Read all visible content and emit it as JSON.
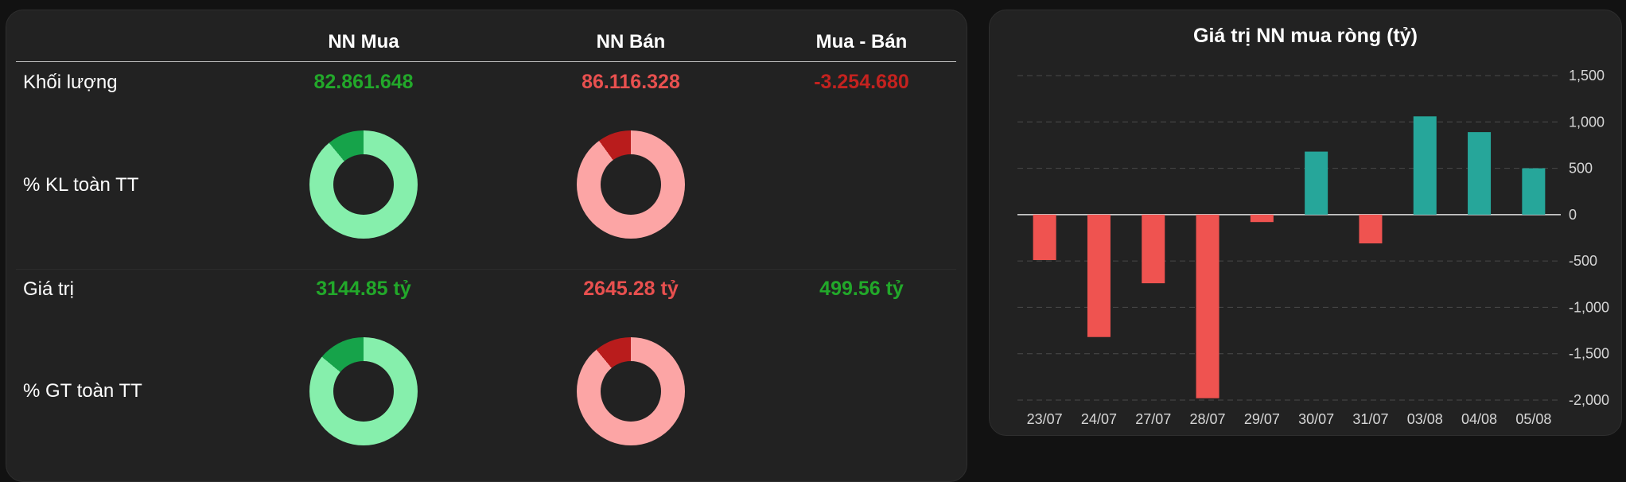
{
  "table": {
    "headers": {
      "buy": "NN Mua",
      "sell": "NN Bán",
      "net": "Mua - Bán"
    },
    "rows": {
      "volume": {
        "label": "Khối lượng",
        "buy": "82.861.648",
        "sell": "86.116.328",
        "net": "-3.254.680"
      },
      "volume_pct": {
        "label": "% KL toàn TT",
        "buy_share": 0.11,
        "sell_share": 0.1
      },
      "value": {
        "label": "Giá trị",
        "buy": "3144.85 tỷ",
        "sell": "2645.28 tỷ",
        "net": "499.56 tỷ"
      },
      "value_pct": {
        "label": "% GT toàn TT",
        "buy_share": 0.14,
        "sell_share": 0.11
      }
    }
  },
  "colors": {
    "positive_text": "#22a82a",
    "negative_text": "#e8504f",
    "net_negative_text": "#c4221f",
    "buy_donut_share": "#16a34a",
    "buy_donut_rest": "#86efac",
    "sell_donut_share": "#b91c1c",
    "sell_donut_rest": "#fca5a5",
    "bar_positive": "#26a69a",
    "bar_negative": "#ef5350"
  },
  "chart_data": {
    "type": "bar",
    "title": "Giá trị NN mua ròng (tỷ)",
    "categories": [
      "23/07",
      "24/07",
      "27/07",
      "28/07",
      "29/07",
      "30/07",
      "31/07",
      "03/08",
      "04/08",
      "05/08"
    ],
    "values": [
      -490,
      -1320,
      -740,
      -1980,
      -80,
      680,
      -310,
      1060,
      890,
      500
    ],
    "ylim": [
      -2000,
      1500
    ],
    "yticks": [
      1500,
      1000,
      500,
      0,
      -500,
      -1000,
      -1500,
      -2000
    ],
    "ytick_labels": [
      "1,500",
      "1,000",
      "500",
      "0",
      "-500",
      "-1,000",
      "-1,500",
      "-2,000"
    ],
    "yaxis_position": "right",
    "grid": true
  }
}
